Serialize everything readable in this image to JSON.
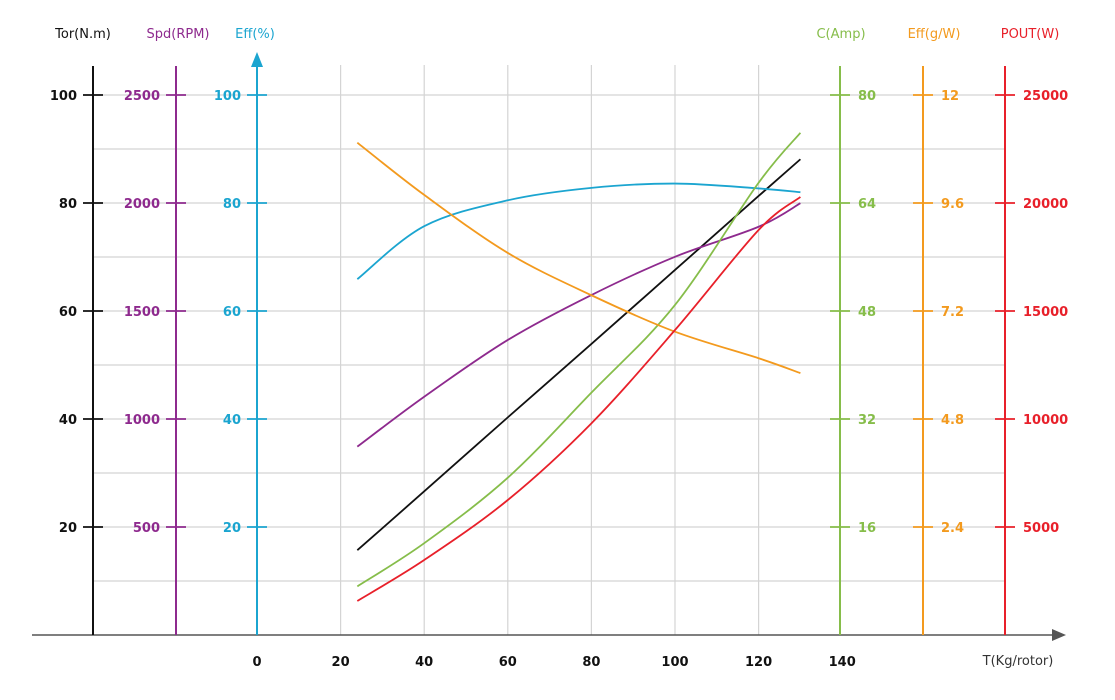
{
  "chart_data": {
    "type": "line",
    "title": "",
    "xlabel": "T(Kg/rotor)",
    "x_ticks": [
      0,
      20,
      40,
      60,
      80,
      100,
      120,
      140
    ],
    "xlim": [
      0,
      140
    ],
    "grid": true,
    "x": [
      24,
      40,
      60,
      80,
      100,
      120,
      130
    ],
    "axes": [
      {
        "id": "tor",
        "label": "Tor(N.m)",
        "side": "left",
        "color": "#111111",
        "max": 100,
        "ticks": [
          "20",
          "40",
          "60",
          "80",
          "100"
        ],
        "tick_values": [
          20,
          40,
          60,
          80,
          100
        ]
      },
      {
        "id": "spd",
        "label": "Spd(RPM)",
        "side": "left",
        "color": "#8e2a8e",
        "max": 2500,
        "ticks": [
          "500",
          "1000",
          "1500",
          "2000",
          "2500"
        ],
        "tick_values": [
          500,
          1000,
          1500,
          2000,
          2500
        ]
      },
      {
        "id": "eff",
        "label": "Eff(%)",
        "side": "left",
        "color": "#1ba5d0",
        "max": 100,
        "ticks": [
          "20",
          "40",
          "60",
          "80",
          "100"
        ],
        "tick_values": [
          20,
          40,
          60,
          80,
          100
        ]
      },
      {
        "id": "amp",
        "label": "C(Amp)",
        "side": "right",
        "color": "#86bd4a",
        "max": 80,
        "ticks": [
          "16",
          "32",
          "48",
          "64",
          "80"
        ],
        "tick_values": [
          16,
          32,
          48,
          64,
          80
        ]
      },
      {
        "id": "gw",
        "label": "Eff(g/W)",
        "side": "right",
        "color": "#f39a1e",
        "max": 12,
        "ticks": [
          "2.4",
          "4.8",
          "7.2",
          "9.6",
          "12"
        ],
        "tick_values": [
          2.4,
          4.8,
          7.2,
          9.6,
          12
        ]
      },
      {
        "id": "pout",
        "label": "POUT(W)",
        "side": "right",
        "color": "#e8202a",
        "max": 25000,
        "ticks": [
          "5000",
          "10000",
          "15000",
          "20000",
          "25000"
        ],
        "tick_values": [
          5000,
          10000,
          15000,
          20000,
          25000
        ]
      }
    ],
    "series": [
      {
        "name": "Torque",
        "axis": "tor",
        "color": "#111111",
        "values": [
          15.7,
          26.6,
          40.3,
          53.9,
          67.6,
          81.3,
          88.1
        ]
      },
      {
        "name": "Speed",
        "axis": "spd",
        "color": "#8e2a8e",
        "values": [
          872,
          1103,
          1366,
          1574,
          1751,
          1890,
          1999
        ]
      },
      {
        "name": "Efficiency %",
        "axis": "eff",
        "color": "#1ba5d0",
        "values": [
          65.9,
          75.7,
          80.5,
          82.8,
          83.6,
          82.7,
          82.0
        ]
      },
      {
        "name": "Current",
        "axis": "amp",
        "color": "#86bd4a",
        "values": [
          7.2,
          13.6,
          23.3,
          35.9,
          48.9,
          67.0,
          74.4
        ]
      },
      {
        "name": "Efficiency g/W",
        "axis": "gw",
        "color": "#f39a1e",
        "values": [
          10.94,
          9.78,
          8.49,
          7.55,
          6.74,
          6.15,
          5.82
        ]
      },
      {
        "name": "Output Power",
        "axis": "pout",
        "color": "#e8202a",
        "values": [
          1575,
          3470,
          6250,
          9800,
          14120,
          18750,
          20280
        ]
      }
    ]
  }
}
